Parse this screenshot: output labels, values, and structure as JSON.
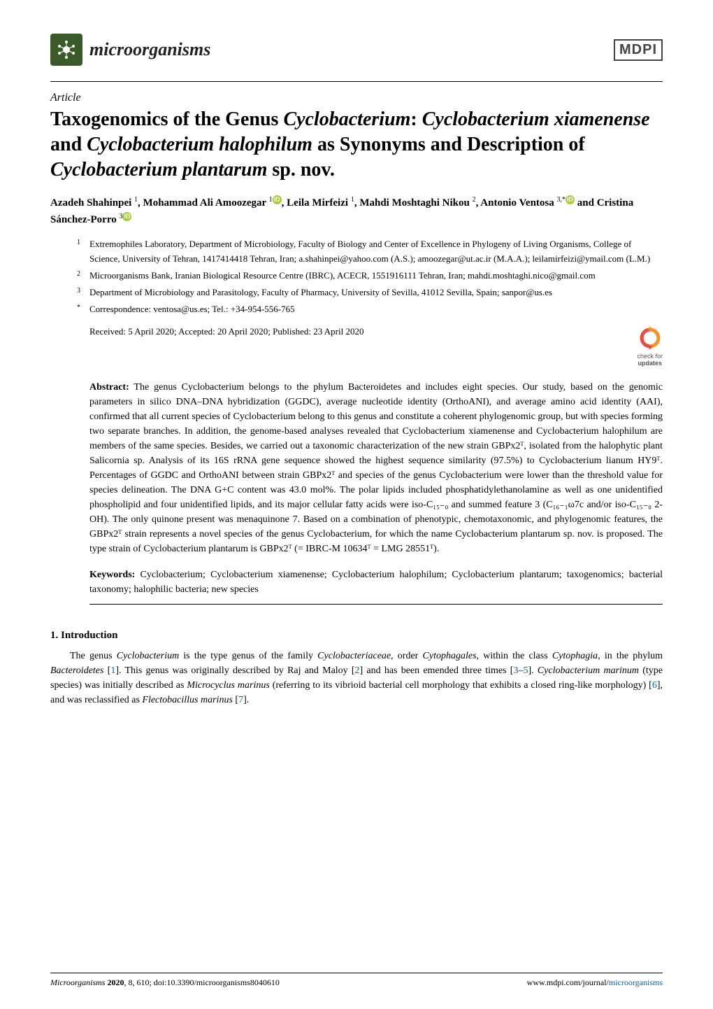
{
  "journal": {
    "name": "microorganisms",
    "logo_bg": "#3a5a2a",
    "publisher": "MDPI"
  },
  "article_type": "Article",
  "title_parts": {
    "t1": "Taxogenomics of the Genus ",
    "g1": "Cyclobacterium",
    "t2": ": ",
    "g2": "Cyclobacterium xiamenense",
    "t3": " and ",
    "g3": "Cyclobacterium halophilum",
    "t4": " as Synonyms and Description of ",
    "g4": "Cyclobacterium plantarum",
    "t5": " sp. nov."
  },
  "authors": [
    {
      "name": "Azadeh Shahinpei",
      "sup": "1"
    },
    {
      "name": "Mohammad Ali Amoozegar",
      "sup": "1",
      "orcid": true
    },
    {
      "name": "Leila Mirfeizi",
      "sup": "1"
    },
    {
      "name": "Mahdi Moshtaghi Nikou",
      "sup": "2"
    },
    {
      "name": "Antonio Ventosa",
      "sup": "3,*",
      "orcid": true
    },
    {
      "name": "Cristina Sánchez-Porro",
      "sup": "3",
      "orcid": true
    }
  ],
  "author_string_parts": {
    "a1": "Azadeh Shahinpei ",
    "s1": "1",
    "c1": ", ",
    "a2": "Mohammad Ali Amoozegar ",
    "s2": "1",
    "c2": ", ",
    "a3": "Leila Mirfeizi ",
    "s3": "1",
    "c3": ", ",
    "a4": "Mahdi Moshtaghi Nikou ",
    "s4": "2",
    "c4": ", ",
    "a5": "Antonio Ventosa ",
    "s5": "3,",
    "star": "*",
    "c5": " and ",
    "a6": "Cristina Sánchez-Porro ",
    "s6": "3"
  },
  "affiliations": [
    {
      "num": "1",
      "text": "Extremophiles Laboratory, Department of Microbiology, Faculty of Biology and Center of Excellence in Phylogeny of Living Organisms, College of Science, University of Tehran, 1417414418 Tehran, Iran; a.shahinpei@yahoo.com (A.S.); amoozegar@ut.ac.ir (M.A.A.); leilamirfeizi@ymail.com (L.M.)"
    },
    {
      "num": "2",
      "text": "Microorganisms Bank, Iranian Biological Resource Centre (IBRC), ACECR, 1551916111 Tehran, Iran; mahdi.moshtaghi.nico@gmail.com"
    },
    {
      "num": "3",
      "text": "Department of Microbiology and Parasitology, Faculty of Pharmacy, University of Sevilla, 41012 Sevilla, Spain; sanpor@us.es"
    },
    {
      "num": "*",
      "text": "Correspondence: ventosa@us.es; Tel.: +34-954-556-765"
    }
  ],
  "dates": "Received: 5 April 2020; Accepted: 20 April 2020; Published: 23 April 2020",
  "check_updates": {
    "line1": "check for",
    "line2": "updates"
  },
  "abstract": {
    "label": "Abstract:",
    "text": " The genus Cyclobacterium belongs to the phylum Bacteroidetes and includes eight species. Our study, based on the genomic parameters in silico DNA–DNA hybridization (GGDC), average nucleotide identity (OrthoANI), and average amino acid identity (AAI), confirmed that all current species of Cyclobacterium belong to this genus and constitute a coherent phylogenomic group, but with species forming two separate branches. In addition, the genome-based analyses revealed that Cyclobacterium xiamenense and Cyclobacterium halophilum are members of the same species. Besides, we carried out a taxonomic characterization of the new strain GBPx2ᵀ, isolated from the halophytic plant Salicornia sp. Analysis of its 16S rRNA gene sequence showed the highest sequence similarity (97.5%) to Cyclobacterium lianum HY9ᵀ. Percentages of GGDC and OrthoANI between strain GBPx2ᵀ and species of the genus Cyclobacterium were lower than the threshold value for species delineation. The DNA G+C content was 43.0 mol%. The polar lipids included phosphatidylethanolamine as well as one unidentified phospholipid and four unidentified lipids, and its major cellular fatty acids were iso-C₁₅₋₀ and summed feature 3 (C₁₆₋₁ω7c and/or iso-C₁₅₋₀ 2-OH). The only quinone present was menaquinone 7. Based on a combination of phenotypic, chemotaxonomic, and phylogenomic features, the GBPx2ᵀ strain represents a novel species of the genus Cyclobacterium, for which the name Cyclobacterium plantarum sp. nov. is proposed. The type strain of Cyclobacterium plantarum is GBPx2ᵀ (= IBRC-M 10634ᵀ = LMG 28551ᵀ)."
  },
  "keywords": {
    "label": "Keywords:",
    "text": " Cyclobacterium; Cyclobacterium xiamenense; Cyclobacterium halophilum; Cyclobacterium plantarum; taxogenomics; bacterial taxonomy; halophilic bacteria; new species"
  },
  "section": {
    "heading": "1. Introduction",
    "body_html": "The genus <i>Cyclobacterium</i> is the type genus of the family <i>Cyclobacteriaceae</i>, order <i>Cytophagales</i>, within the class <i>Cytophagia</i>, in the phylum <i>Bacteroidetes</i> [<a>1</a>]. This genus was originally described by Raj and Maloy [<a>2</a>] and has been emended three times [<a>3</a>–<a>5</a>]. <i>Cyclobacterium marinum</i> (type species) was initially described as <i>Microcyclus marinus</i> (referring to its vibrioid bacterial cell morphology that exhibits a closed ring-like morphology) [<a>6</a>], and was reclassified as <i>Flectobacillus marinus</i> [<a>7</a>]."
  },
  "footer": {
    "left_citation": "Microorganisms ",
    "left_year": "2020",
    "left_rest": ", 8, 610; doi:10.3390/microorganisms8040610",
    "right": "www.mdpi.com/journal/microorganisms",
    "right_link": "microorganisms"
  },
  "colors": {
    "link": "#0066aa",
    "orcid": "#a6ce39",
    "check_orange": "#f7931e",
    "check_red": "#e74c3c"
  }
}
